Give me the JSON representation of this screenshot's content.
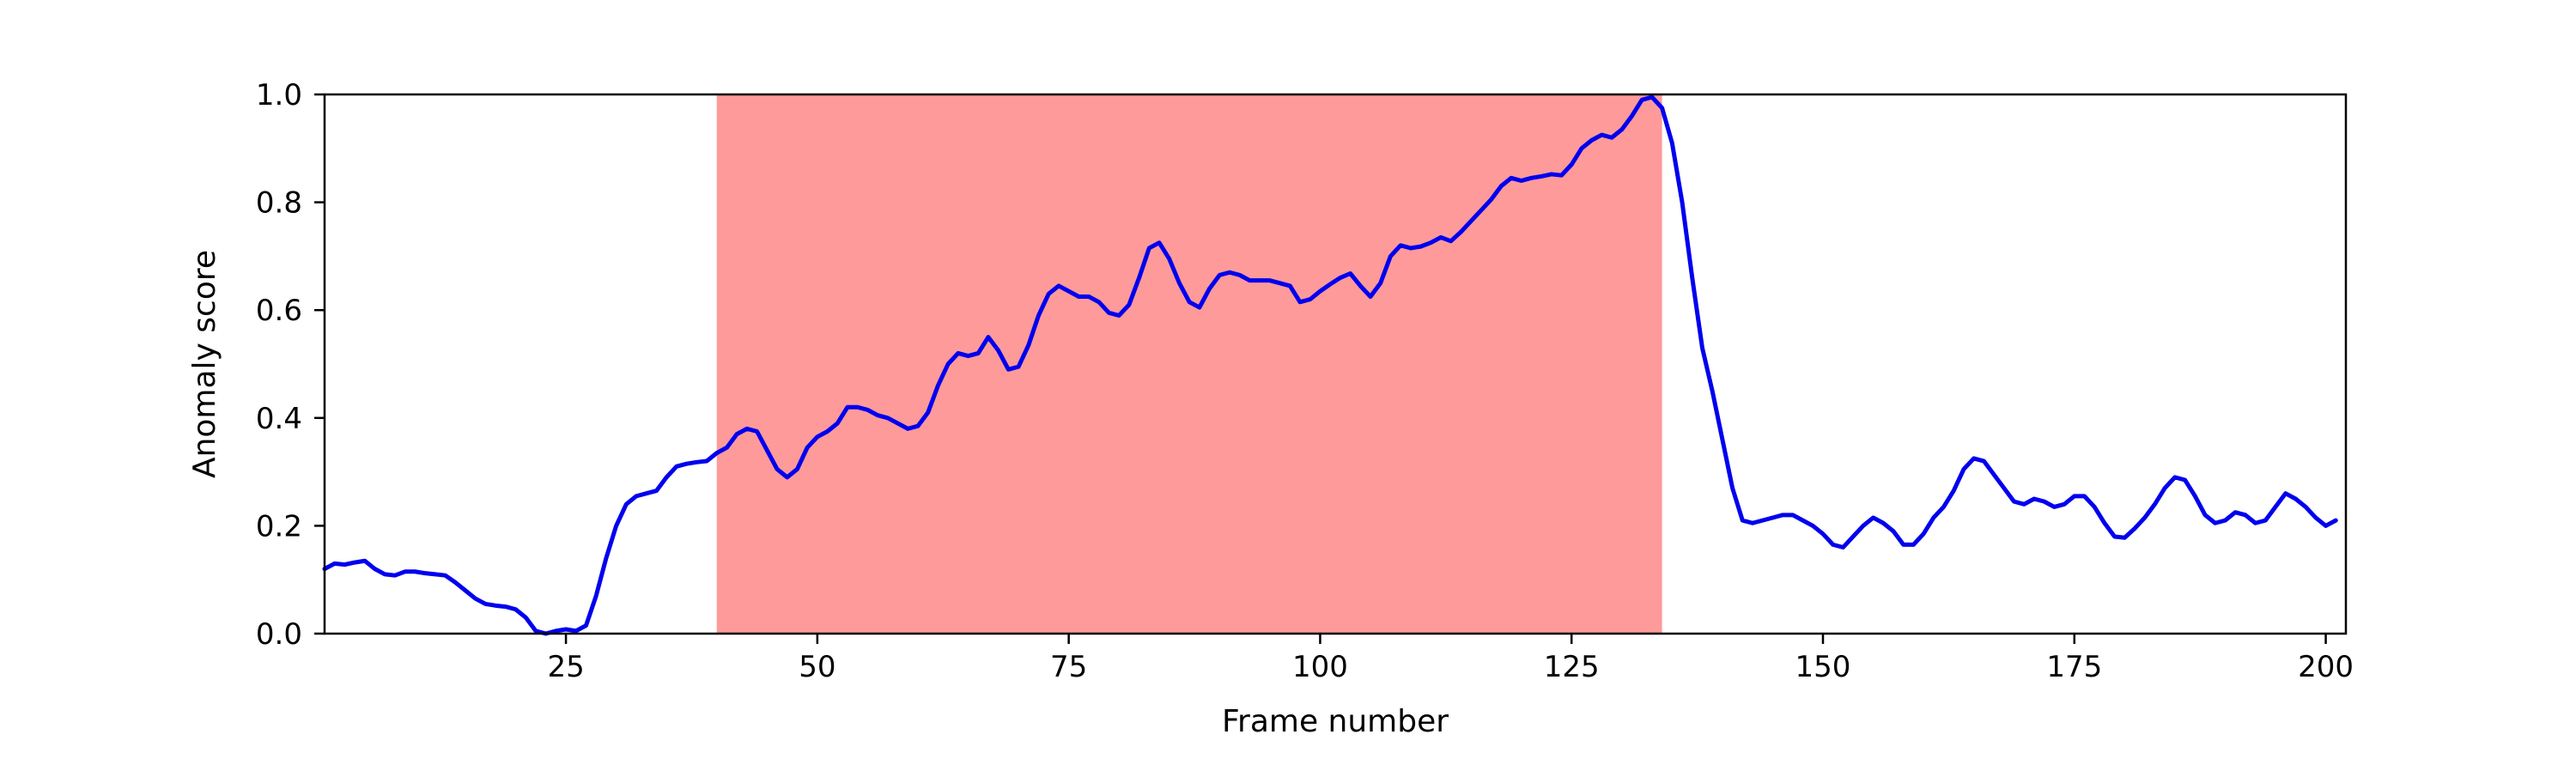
{
  "chart_data": {
    "type": "line",
    "xlabel": "Frame number",
    "ylabel": "Anomaly score",
    "xlim": [
      1,
      202
    ],
    "ylim": [
      0.0,
      1.0
    ],
    "x_ticks": [
      25,
      50,
      75,
      100,
      125,
      150,
      175,
      200
    ],
    "x_tick_labels": [
      "25",
      "50",
      "75",
      "100",
      "125",
      "150",
      "175",
      "200"
    ],
    "y_ticks": [
      0.0,
      0.2,
      0.4,
      0.6,
      0.8,
      1.0
    ],
    "y_tick_labels": [
      "0.0",
      "0.2",
      "0.4",
      "0.6",
      "0.8",
      "1.0"
    ],
    "grid": false,
    "highlight_region": {
      "x_start": 40,
      "x_end": 134,
      "color": "#fe9a9a"
    },
    "series": [
      {
        "color": "#0000ee",
        "points": [
          [
            1,
            0.12
          ],
          [
            2,
            0.13
          ],
          [
            3,
            0.128
          ],
          [
            4,
            0.132
          ],
          [
            5,
            0.135
          ],
          [
            6,
            0.12
          ],
          [
            7,
            0.11
          ],
          [
            8,
            0.108
          ],
          [
            9,
            0.115
          ],
          [
            10,
            0.115
          ],
          [
            11,
            0.112
          ],
          [
            12,
            0.11
          ],
          [
            13,
            0.108
          ],
          [
            14,
            0.095
          ],
          [
            15,
            0.08
          ],
          [
            16,
            0.065
          ],
          [
            17,
            0.055
          ],
          [
            18,
            0.052
          ],
          [
            19,
            0.05
          ],
          [
            20,
            0.045
          ],
          [
            21,
            0.03
          ],
          [
            22,
            0.005
          ],
          [
            23,
            0.0
          ],
          [
            24,
            0.005
          ],
          [
            25,
            0.008
          ],
          [
            26,
            0.005
          ],
          [
            27,
            0.015
          ],
          [
            28,
            0.07
          ],
          [
            29,
            0.14
          ],
          [
            30,
            0.2
          ],
          [
            31,
            0.24
          ],
          [
            32,
            0.255
          ],
          [
            33,
            0.26
          ],
          [
            34,
            0.265
          ],
          [
            35,
            0.29
          ],
          [
            36,
            0.31
          ],
          [
            37,
            0.315
          ],
          [
            38,
            0.318
          ],
          [
            39,
            0.32
          ],
          [
            40,
            0.335
          ],
          [
            41,
            0.345
          ],
          [
            42,
            0.37
          ],
          [
            43,
            0.38
          ],
          [
            44,
            0.375
          ],
          [
            45,
            0.34
          ],
          [
            46,
            0.305
          ],
          [
            47,
            0.29
          ],
          [
            48,
            0.305
          ],
          [
            49,
            0.345
          ],
          [
            50,
            0.365
          ],
          [
            51,
            0.375
          ],
          [
            52,
            0.39
          ],
          [
            53,
            0.42
          ],
          [
            54,
            0.42
          ],
          [
            55,
            0.415
          ],
          [
            56,
            0.405
          ],
          [
            57,
            0.4
          ],
          [
            58,
            0.39
          ],
          [
            59,
            0.38
          ],
          [
            60,
            0.385
          ],
          [
            61,
            0.41
          ],
          [
            62,
            0.46
          ],
          [
            63,
            0.5
          ],
          [
            64,
            0.52
          ],
          [
            65,
            0.515
          ],
          [
            66,
            0.52
          ],
          [
            67,
            0.55
          ],
          [
            68,
            0.525
          ],
          [
            69,
            0.49
          ],
          [
            70,
            0.495
          ],
          [
            71,
            0.535
          ],
          [
            72,
            0.59
          ],
          [
            73,
            0.63
          ],
          [
            74,
            0.645
          ],
          [
            75,
            0.635
          ],
          [
            76,
            0.625
          ],
          [
            77,
            0.625
          ],
          [
            78,
            0.615
          ],
          [
            79,
            0.595
          ],
          [
            80,
            0.59
          ],
          [
            81,
            0.61
          ],
          [
            82,
            0.66
          ],
          [
            83,
            0.715
          ],
          [
            84,
            0.725
          ],
          [
            85,
            0.695
          ],
          [
            86,
            0.65
          ],
          [
            87,
            0.615
          ],
          [
            88,
            0.605
          ],
          [
            89,
            0.64
          ],
          [
            90,
            0.665
          ],
          [
            91,
            0.67
          ],
          [
            92,
            0.665
          ],
          [
            93,
            0.655
          ],
          [
            94,
            0.655
          ],
          [
            95,
            0.655
          ],
          [
            96,
            0.65
          ],
          [
            97,
            0.645
          ],
          [
            98,
            0.615
          ],
          [
            99,
            0.62
          ],
          [
            100,
            0.635
          ],
          [
            101,
            0.648
          ],
          [
            102,
            0.66
          ],
          [
            103,
            0.668
          ],
          [
            104,
            0.645
          ],
          [
            105,
            0.625
          ],
          [
            106,
            0.65
          ],
          [
            107,
            0.7
          ],
          [
            108,
            0.72
          ],
          [
            109,
            0.715
          ],
          [
            110,
            0.718
          ],
          [
            111,
            0.725
          ],
          [
            112,
            0.735
          ],
          [
            113,
            0.728
          ],
          [
            114,
            0.745
          ],
          [
            115,
            0.765
          ],
          [
            116,
            0.785
          ],
          [
            117,
            0.805
          ],
          [
            118,
            0.83
          ],
          [
            119,
            0.845
          ],
          [
            120,
            0.84
          ],
          [
            121,
            0.845
          ],
          [
            122,
            0.848
          ],
          [
            123,
            0.852
          ],
          [
            124,
            0.85
          ],
          [
            125,
            0.87
          ],
          [
            126,
            0.9
          ],
          [
            127,
            0.915
          ],
          [
            128,
            0.925
          ],
          [
            129,
            0.92
          ],
          [
            130,
            0.935
          ],
          [
            131,
            0.96
          ],
          [
            132,
            0.99
          ],
          [
            133,
            0.995
          ],
          [
            134,
            0.975
          ],
          [
            135,
            0.91
          ],
          [
            136,
            0.8
          ],
          [
            137,
            0.66
          ],
          [
            138,
            0.53
          ],
          [
            139,
            0.45
          ],
          [
            140,
            0.36
          ],
          [
            141,
            0.27
          ],
          [
            142,
            0.21
          ],
          [
            143,
            0.205
          ],
          [
            144,
            0.21
          ],
          [
            145,
            0.215
          ],
          [
            146,
            0.22
          ],
          [
            147,
            0.22
          ],
          [
            148,
            0.21
          ],
          [
            149,
            0.2
          ],
          [
            150,
            0.185
          ],
          [
            151,
            0.165
          ],
          [
            152,
            0.16
          ],
          [
            153,
            0.18
          ],
          [
            154,
            0.2
          ],
          [
            155,
            0.215
          ],
          [
            156,
            0.205
          ],
          [
            157,
            0.19
          ],
          [
            158,
            0.165
          ],
          [
            159,
            0.165
          ],
          [
            160,
            0.185
          ],
          [
            161,
            0.215
          ],
          [
            162,
            0.235
          ],
          [
            163,
            0.265
          ],
          [
            164,
            0.305
          ],
          [
            165,
            0.325
          ],
          [
            166,
            0.32
          ],
          [
            167,
            0.295
          ],
          [
            168,
            0.27
          ],
          [
            169,
            0.245
          ],
          [
            170,
            0.24
          ],
          [
            171,
            0.25
          ],
          [
            172,
            0.245
          ],
          [
            173,
            0.235
          ],
          [
            174,
            0.24
          ],
          [
            175,
            0.255
          ],
          [
            176,
            0.255
          ],
          [
            177,
            0.235
          ],
          [
            178,
            0.205
          ],
          [
            179,
            0.18
          ],
          [
            180,
            0.178
          ],
          [
            181,
            0.195
          ],
          [
            182,
            0.215
          ],
          [
            183,
            0.24
          ],
          [
            184,
            0.27
          ],
          [
            185,
            0.29
          ],
          [
            186,
            0.285
          ],
          [
            187,
            0.255
          ],
          [
            188,
            0.22
          ],
          [
            189,
            0.205
          ],
          [
            190,
            0.21
          ],
          [
            191,
            0.225
          ],
          [
            192,
            0.22
          ],
          [
            193,
            0.205
          ],
          [
            194,
            0.21
          ],
          [
            195,
            0.235
          ],
          [
            196,
            0.26
          ],
          [
            197,
            0.25
          ],
          [
            198,
            0.235
          ],
          [
            199,
            0.215
          ],
          [
            200,
            0.2
          ],
          [
            201,
            0.21
          ]
        ]
      }
    ]
  }
}
